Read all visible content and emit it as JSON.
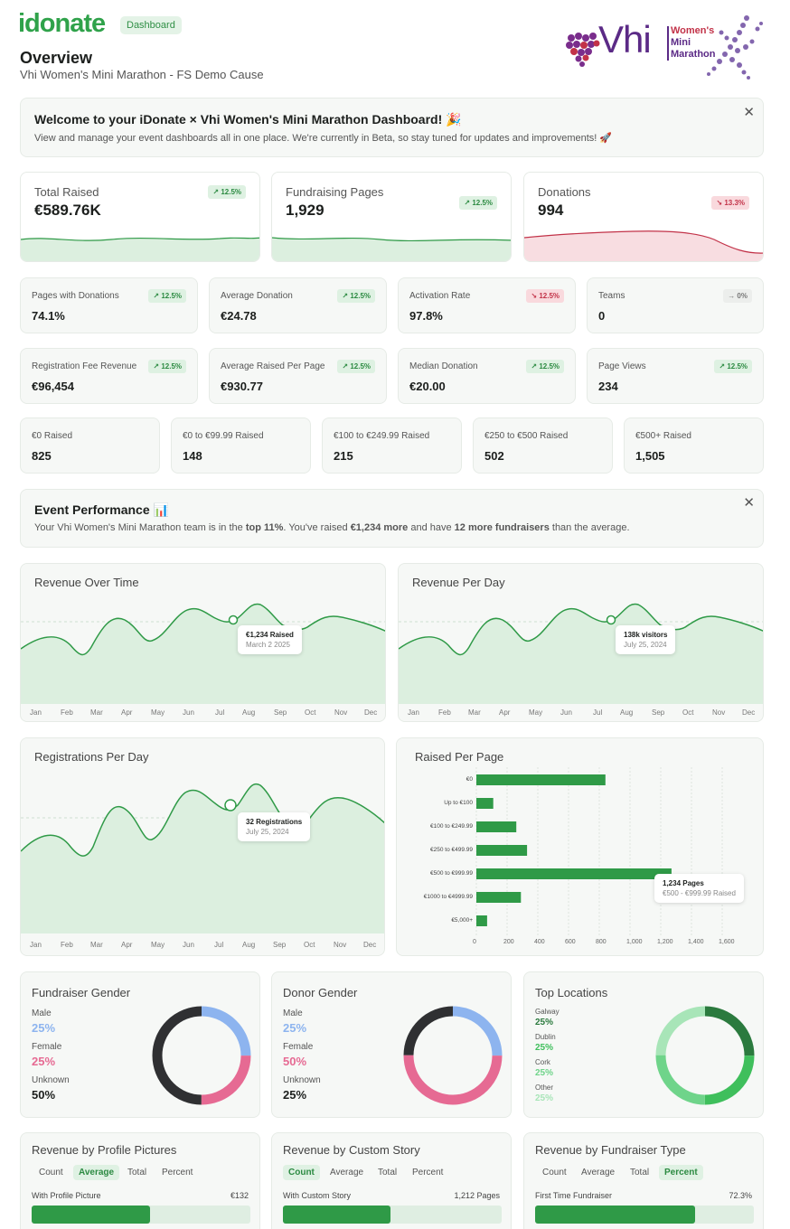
{
  "header": {
    "logo": "idonate",
    "badge": "Dashboard",
    "title": "Overview",
    "subtitle": "Vhi Women's Mini Marathon - FS Demo Cause",
    "partner_logo": {
      "brand": "Vhi",
      "event": "Women's Mini Marathon",
      "event_lines": [
        "Women's",
        "Mini",
        "Marathon"
      ]
    }
  },
  "welcome": {
    "title": "Welcome to your iDonate × Vhi Women's Mini Marathon Dashboard! 🎉",
    "text": "View and manage your event dashboards all in one place. We're currently in Beta, so stay tuned for updates and improvements! 🚀",
    "close": "✕"
  },
  "kpis": [
    {
      "label": "Total Raised",
      "value": "€589.76K",
      "change": "↗ 12.5%",
      "trend": "up"
    },
    {
      "label": "Fundraising Pages",
      "value": "1,929",
      "change": "↗ 12.5%",
      "trend": "up"
    },
    {
      "label": "Donations",
      "value": "994",
      "change": "↘ 13.3%",
      "trend": "down"
    }
  ],
  "stats_row1": [
    {
      "label": "Pages with Donations",
      "value": "74.1%",
      "change": "↗ 12.5%",
      "trend": "up"
    },
    {
      "label": "Average Donation",
      "value": "€24.78",
      "change": "↗ 12.5%",
      "trend": "up"
    },
    {
      "label": "Activation Rate",
      "value": "97.8%",
      "change": "↘ 12.5%",
      "trend": "down"
    },
    {
      "label": "Teams",
      "value": "0",
      "change": "→ 0%",
      "trend": "flat"
    }
  ],
  "stats_row2": [
    {
      "label": "Registration Fee Revenue",
      "value": "€96,454",
      "change": "↗ 12.5%",
      "trend": "up"
    },
    {
      "label": "Average Raised Per Page",
      "value": "€930.77",
      "change": "↗ 12.5%",
      "trend": "up"
    },
    {
      "label": "Median Donation",
      "value": "€20.00",
      "change": "↗ 12.5%",
      "trend": "up"
    },
    {
      "label": "Page Views",
      "value": "234",
      "change": "↗ 12.5%",
      "trend": "up"
    }
  ],
  "raised_buckets": [
    {
      "label": "€0 Raised",
      "value": "825"
    },
    {
      "label": "€0 to €99.99 Raised",
      "value": "148"
    },
    {
      "label": "€100 to €249.99 Raised",
      "value": "215"
    },
    {
      "label": "€250 to €500 Raised",
      "value": "502"
    },
    {
      "label": "€500+ Raised",
      "value": "1,505"
    }
  ],
  "performance": {
    "title": "Event Performance 📊",
    "text_parts": [
      "Your Vhi Women's Mini Marathon team is in the ",
      "top 11%",
      ". You've raised ",
      "€1,234 more",
      " and have ",
      "12 more fundraisers",
      " than the average."
    ],
    "close": "✕"
  },
  "months": [
    "Jan",
    "Feb",
    "Mar",
    "Apr",
    "May",
    "Jun",
    "Jul",
    "Aug",
    "Sep",
    "Oct",
    "Nov",
    "Dec"
  ],
  "revenue_over_time": {
    "title": "Revenue Over Time",
    "tooltip_value": "€1,234 Raised",
    "tooltip_date": "March 2 2025"
  },
  "revenue_per_day": {
    "title": "Revenue Per Day",
    "tooltip_value": "138k visitors",
    "tooltip_date": "July 25, 2024"
  },
  "registrations_per_day": {
    "title": "Registrations Per Day",
    "tooltip_value": "32 Registrations",
    "tooltip_date": "July 25, 2024"
  },
  "chart_data": {
    "type": "bar",
    "title": "Raised Per Page",
    "orientation": "horizontal",
    "categories": [
      "€0",
      "Up to €100",
      "€100 to €249.99",
      "€250 to €499.99",
      "€500 to €999.99",
      "€1000 to €4999.99",
      "€5,000+"
    ],
    "values": [
      840,
      110,
      260,
      330,
      1270,
      290,
      70
    ],
    "xlim": [
      0,
      1600
    ],
    "x_ticks": [
      "0",
      "200",
      "400",
      "600",
      "800",
      "1,000",
      "1,200",
      "1,400",
      "1,600"
    ],
    "grid": true,
    "color": "#2f9a47",
    "tooltip_value": "1,234 Pages",
    "tooltip_label": "€500 - €999.99 Raised"
  },
  "fundraiser_gender": {
    "title": "Fundraiser Gender",
    "items": [
      {
        "label": "Male",
        "value": "25%",
        "color": "#8db4ef"
      },
      {
        "label": "Female",
        "value": "25%",
        "color": "#e66a93"
      },
      {
        "label": "Unknown",
        "value": "50%",
        "color": "#2f3032"
      }
    ]
  },
  "donor_gender": {
    "title": "Donor Gender",
    "items": [
      {
        "label": "Male",
        "value": "25%",
        "color": "#8db4ef"
      },
      {
        "label": "Female",
        "value": "50%",
        "color": "#e66a93"
      },
      {
        "label": "Unknown",
        "value": "25%",
        "color": "#2f3032"
      }
    ]
  },
  "top_locations": {
    "title": "Top Locations",
    "items": [
      {
        "label": "Galway",
        "value": "25%",
        "color": "#2b7a3e"
      },
      {
        "label": "Dublin",
        "value": "25%",
        "color": "#3fbf5c"
      },
      {
        "label": "Cork",
        "value": "25%",
        "color": "#6fd48a"
      },
      {
        "label": "Other",
        "value": "25%",
        "color": "#a8e5b8"
      }
    ]
  },
  "profile_pictures": {
    "title": "Revenue by Profile Pictures",
    "tabs": [
      "Count",
      "Average",
      "Total",
      "Percent"
    ],
    "active": 1,
    "bar_label": "With Profile Picture",
    "bar_value": "€132",
    "fill": 0.54
  },
  "custom_story": {
    "title": "Revenue by Custom Story",
    "tabs": [
      "Count",
      "Average",
      "Total",
      "Percent"
    ],
    "active": 0,
    "bar_label": "With Custom Story",
    "bar_value": "1,212 Pages",
    "fill": 0.49
  },
  "fundraiser_type": {
    "title": "Revenue by Fundraiser Type",
    "tabs": [
      "Count",
      "Average",
      "Total",
      "Percent"
    ],
    "active": 3,
    "bar_label": "First Time Fundraiser",
    "bar_value": "72.3%",
    "fill": 0.73
  },
  "colors": {
    "brand": "#2fa24a",
    "up": "#2b8a41",
    "down": "#c23248",
    "purple": "#5b2a86"
  }
}
